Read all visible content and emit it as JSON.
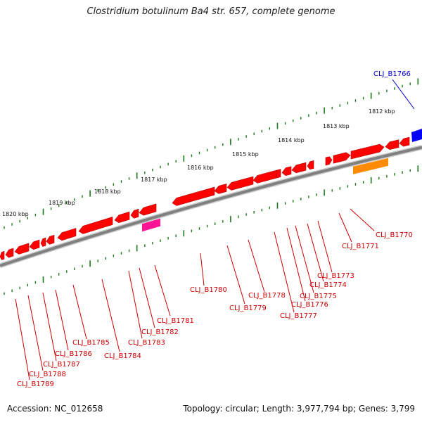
{
  "title": "Clostridium botulinum Ba4 str. 657, complete genome",
  "footer": {
    "accession": "Accession: NC_012658",
    "summary": "Topology: circular; Length: 3,977,794 bp; Genes: 3,799"
  },
  "colors": {
    "backbone": "#808080",
    "ticks": "#1a7a1a",
    "forward_gene": "#ff0000",
    "reverse_gene": "#ff0000",
    "rrna": "#ff1493",
    "cds_orange": "#ff8c00",
    "blue_gene": "#0000ff",
    "label_red": "#cc0000",
    "label_blue": "#0000cc"
  },
  "scale": {
    "unit": "kbp",
    "ticks": [
      "1812 kbp",
      "1813 kbp",
      "1814 kbp",
      "1815 kbp",
      "1816 kbp",
      "1817 kbp",
      "1818 kbp",
      "1819 kbp",
      "1820 kbp"
    ]
  },
  "gene_labels": {
    "top": [
      "CLJ_B1766"
    ],
    "bottom": [
      "CLJ_B1770",
      "CLJ_B1771",
      "CLJ_B1773",
      "CLJ_B1774",
      "CLJ_B1775",
      "CLJ_B1776",
      "CLJ_B1777",
      "CLJ_B1778",
      "CLJ_B1779",
      "CLJ_B1780",
      "CLJ_B1781",
      "CLJ_B1782",
      "CLJ_B1783",
      "CLJ_B1784",
      "CLJ_B1785",
      "CLJ_B1786",
      "CLJ_B1787",
      "CLJ_B1788",
      "CLJ_B1789"
    ]
  }
}
